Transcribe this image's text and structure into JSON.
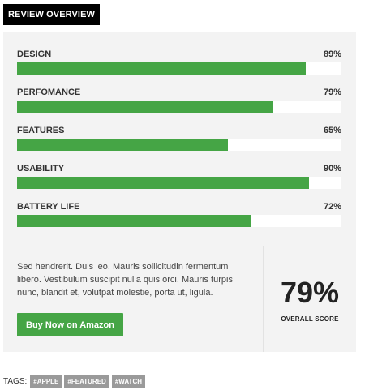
{
  "header": {
    "title": "REVIEW OVERVIEW"
  },
  "criteria": [
    {
      "label": "DESIGN",
      "score_text": "89%",
      "value": 89
    },
    {
      "label": "PERFOMANCE",
      "score_text": "79%",
      "value": 79
    },
    {
      "label": "FEATURES",
      "score_text": "65%",
      "value": 65
    },
    {
      "label": "USABILITY",
      "score_text": "90%",
      "value": 90
    },
    {
      "label": "BATTERY LIFE",
      "score_text": "72%",
      "value": 72
    }
  ],
  "summary": {
    "text": "Sed hendrerit. Duis leo. Mauris sollicitudin fermentum libero. Vestibulum suscipit nulla quis orci. Mauris turpis nunc, blandit et, volutpat molestie, porta ut, ligula.",
    "button_label": "Buy Now on Amazon"
  },
  "overall": {
    "score": "79%",
    "label": "OVERALL SCORE"
  },
  "tags": {
    "label": "TAGS:",
    "items": [
      "#APPLE",
      "#FEATURED",
      "#WATCH"
    ]
  },
  "colors": {
    "accent": "#45a545",
    "header_bg": "#000000",
    "panel_bg": "#f3f3f3",
    "tag_bg": "#9a9a9a"
  }
}
